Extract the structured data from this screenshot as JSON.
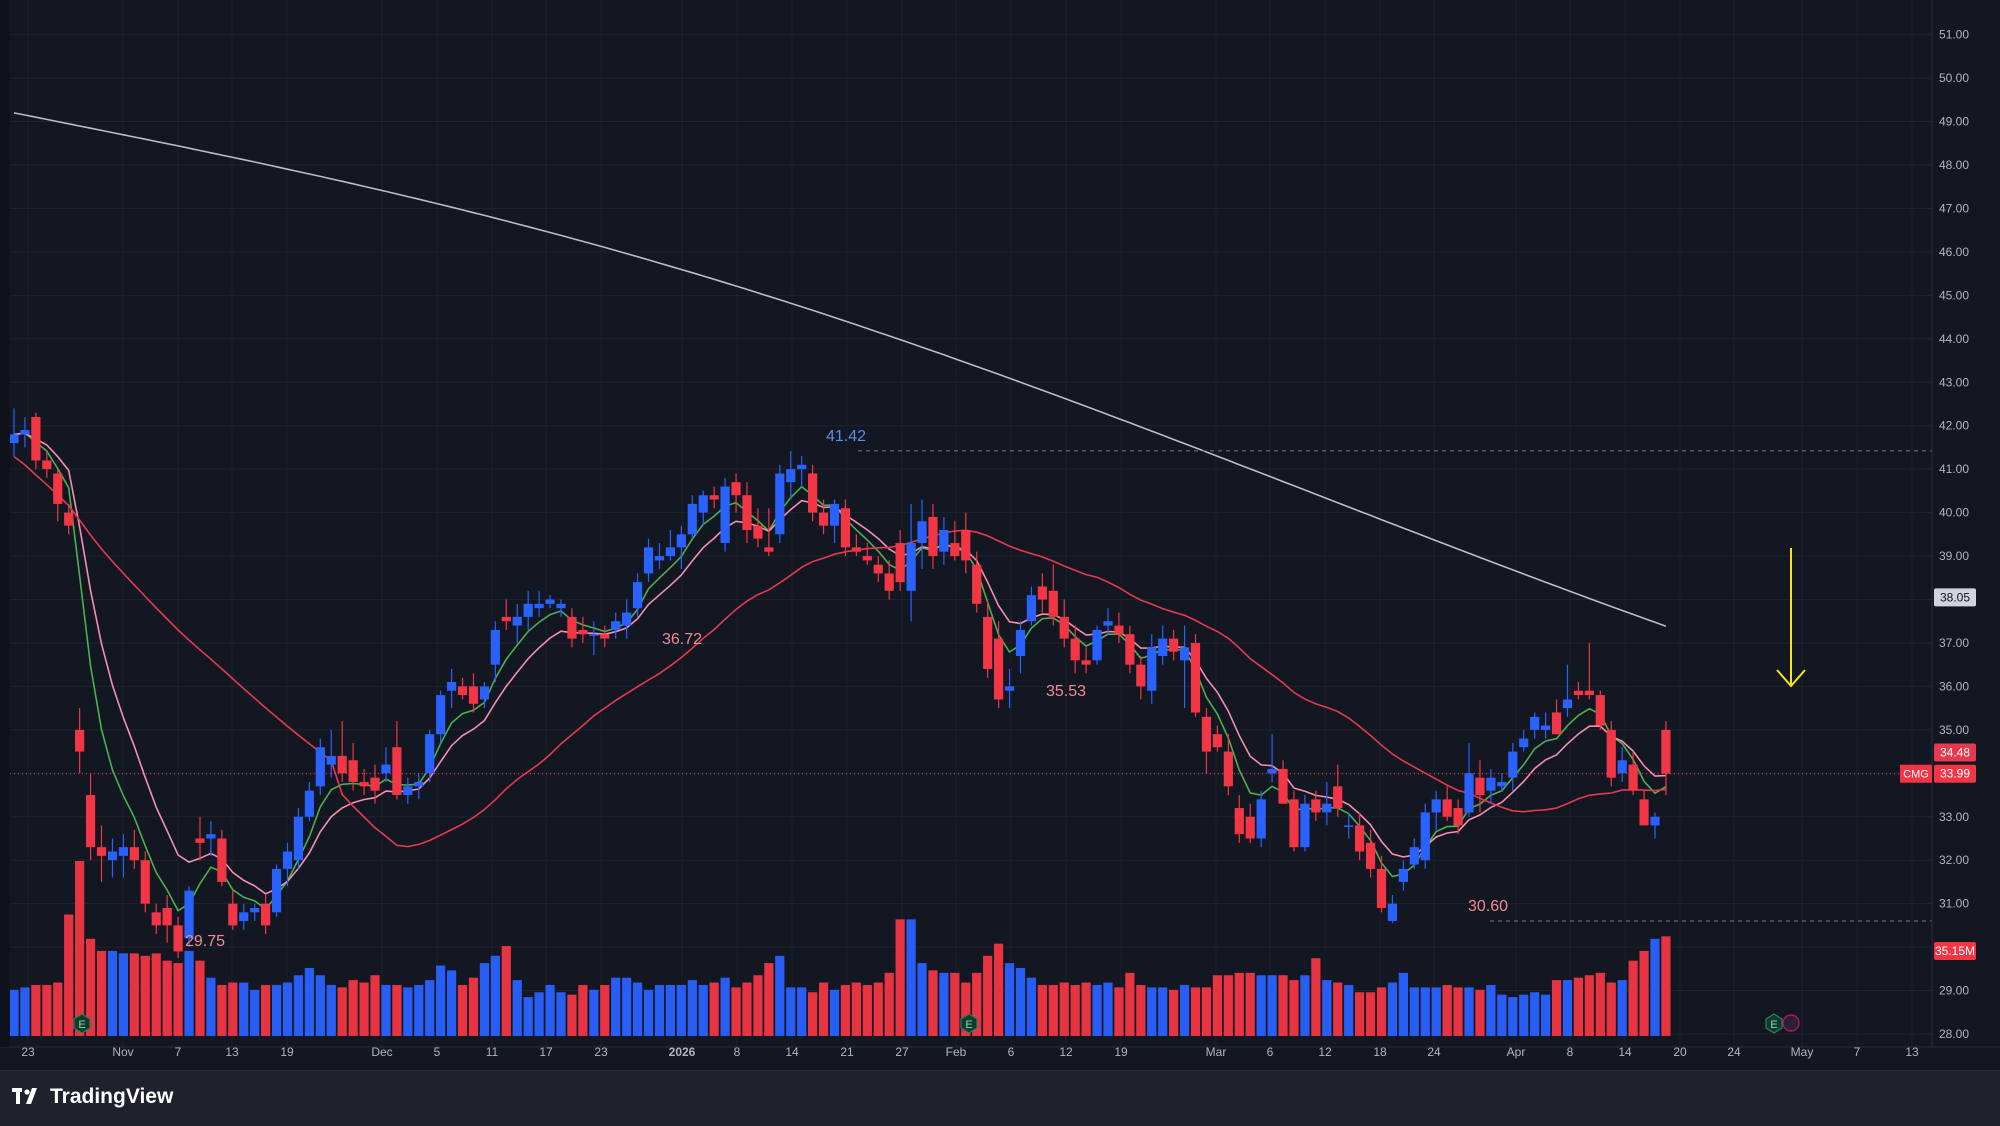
{
  "brand": {
    "name": "TradingView"
  },
  "colors": {
    "up": "#2962ff",
    "down": "#f23645",
    "ema_fast": "#4caf50",
    "ema_mid": "#f48fb1",
    "sma_mid": "#e53950",
    "sma_long": "#bdbdbd",
    "arrow": "#f5e51b"
  },
  "chart_data": {
    "type": "candlestick",
    "symbol": "CMG",
    "y_range": [
      27.5,
      51.2
    ],
    "y_ticks": [
      "28.00",
      "29.00",
      "30.00",
      "31.00",
      "32.00",
      "33.00",
      "34.00",
      "35.00",
      "36.00",
      "37.00",
      "38.00",
      "39.00",
      "40.00",
      "41.00",
      "42.00",
      "43.00",
      "44.00",
      "45.00",
      "46.00",
      "47.00",
      "48.00",
      "49.00",
      "50.00",
      "51.00"
    ],
    "x_ticks": [
      "23",
      "Nov",
      "7",
      "13",
      "19",
      "Dec",
      "5",
      "11",
      "17",
      "23",
      "2026",
      "8",
      "14",
      "21",
      "27",
      "Feb",
      "6",
      "12",
      "19",
      "Mar",
      "6",
      "12",
      "18",
      "24",
      "Apr",
      "8",
      "14",
      "20",
      "24",
      "May",
      "7",
      "13"
    ],
    "price_labels": {
      "ma_long": "38.05",
      "ma_mid": "34.48",
      "last": "33.99",
      "volume": "35.15M"
    },
    "annotations": [
      "41.42",
      "36.72",
      "29.75",
      "35.53",
      "30.60"
    ],
    "candles": [
      [
        41.6,
        42.4,
        41.3,
        41.8
      ],
      [
        41.8,
        42.2,
        41.5,
        41.9
      ],
      [
        42.2,
        42.3,
        41.0,
        41.2
      ],
      [
        41.2,
        41.4,
        40.8,
        41.0
      ],
      [
        40.9,
        41.0,
        39.8,
        40.2
      ],
      [
        40.0,
        40.2,
        39.5,
        39.7
      ],
      [
        35.0,
        35.5,
        34.0,
        34.5
      ],
      [
        33.5,
        34.0,
        32.0,
        32.3
      ],
      [
        32.3,
        32.8,
        31.5,
        32.1
      ],
      [
        32.0,
        32.5,
        31.6,
        32.2
      ],
      [
        32.1,
        32.6,
        31.6,
        32.3
      ],
      [
        32.3,
        32.7,
        31.8,
        32.0
      ],
      [
        32.0,
        32.2,
        30.8,
        31.0
      ],
      [
        30.8,
        31.0,
        30.3,
        30.5
      ],
      [
        30.9,
        31.2,
        30.1,
        30.5
      ],
      [
        30.5,
        30.7,
        29.75,
        29.9
      ],
      [
        30.2,
        31.4,
        30.0,
        31.3
      ],
      [
        32.5,
        33.0,
        32.0,
        32.4
      ],
      [
        32.5,
        32.9,
        32.1,
        32.6
      ],
      [
        32.5,
        32.7,
        31.4,
        31.5
      ],
      [
        31.0,
        31.3,
        30.4,
        30.5
      ],
      [
        30.6,
        31.0,
        30.4,
        30.8
      ],
      [
        30.8,
        31.0,
        30.6,
        30.9
      ],
      [
        31.0,
        31.2,
        30.3,
        30.5
      ],
      [
        30.8,
        31.9,
        30.7,
        31.8
      ],
      [
        31.8,
        32.4,
        31.4,
        32.2
      ],
      [
        32.0,
        33.2,
        31.8,
        33.0
      ],
      [
        33.0,
        33.8,
        32.9,
        33.6
      ],
      [
        33.7,
        34.8,
        33.5,
        34.6
      ],
      [
        34.2,
        35.0,
        33.9,
        34.4
      ],
      [
        34.4,
        35.2,
        33.8,
        34.0
      ],
      [
        34.3,
        34.7,
        33.6,
        33.8
      ],
      [
        33.8,
        34.1,
        33.5,
        33.7
      ],
      [
        33.9,
        34.2,
        33.3,
        33.6
      ],
      [
        34.0,
        34.6,
        33.8,
        34.2
      ],
      [
        34.6,
        35.2,
        33.4,
        33.5
      ],
      [
        33.5,
        33.9,
        33.3,
        33.7
      ],
      [
        33.7,
        34.0,
        33.4,
        33.8
      ],
      [
        34.0,
        35.0,
        33.8,
        34.9
      ],
      [
        34.9,
        35.9,
        34.7,
        35.8
      ],
      [
        35.9,
        36.4,
        35.5,
        36.1
      ],
      [
        36.0,
        36.2,
        35.7,
        35.8
      ],
      [
        36.0,
        36.3,
        35.4,
        35.6
      ],
      [
        35.7,
        36.1,
        35.5,
        36.0
      ],
      [
        36.5,
        37.5,
        36.1,
        37.3
      ],
      [
        37.6,
        38.0,
        37.3,
        37.5
      ],
      [
        37.4,
        37.9,
        37.0,
        37.6
      ],
      [
        37.6,
        38.2,
        37.3,
        37.9
      ],
      [
        37.8,
        38.2,
        37.6,
        37.9
      ],
      [
        37.9,
        38.1,
        37.8,
        38.0
      ],
      [
        37.8,
        38.0,
        37.6,
        37.9
      ],
      [
        37.6,
        37.8,
        36.9,
        37.1
      ],
      [
        37.3,
        37.6,
        37.0,
        37.2
      ],
      [
        37.2,
        37.5,
        36.72,
        37.2
      ],
      [
        37.2,
        37.4,
        36.9,
        37.1
      ],
      [
        37.3,
        37.7,
        37.1,
        37.5
      ],
      [
        37.4,
        38.0,
        37.1,
        37.7
      ],
      [
        37.8,
        38.6,
        37.6,
        38.4
      ],
      [
        38.6,
        39.4,
        38.4,
        39.2
      ],
      [
        38.9,
        39.3,
        38.7,
        39.0
      ],
      [
        39.0,
        39.6,
        38.9,
        39.2
      ],
      [
        39.2,
        39.7,
        38.7,
        39.5
      ],
      [
        39.5,
        40.4,
        39.4,
        40.2
      ],
      [
        40.0,
        40.5,
        39.7,
        40.4
      ],
      [
        40.4,
        40.6,
        40.1,
        40.3
      ],
      [
        39.3,
        40.8,
        39.1,
        40.6
      ],
      [
        40.7,
        40.9,
        40.0,
        40.4
      ],
      [
        40.4,
        40.7,
        39.3,
        39.6
      ],
      [
        39.7,
        40.1,
        39.2,
        39.4
      ],
      [
        39.2,
        40.1,
        39.0,
        39.1
      ],
      [
        39.5,
        41.1,
        39.3,
        40.9
      ],
      [
        40.7,
        41.42,
        40.3,
        41.0
      ],
      [
        41.0,
        41.3,
        40.6,
        41.1
      ],
      [
        40.9,
        41.1,
        39.8,
        40.0
      ],
      [
        40.0,
        40.3,
        39.5,
        39.7
      ],
      [
        39.7,
        40.3,
        39.3,
        40.2
      ],
      [
        40.1,
        40.3,
        39.0,
        39.2
      ],
      [
        39.2,
        39.5,
        39.0,
        39.1
      ],
      [
        39.0,
        39.3,
        38.8,
        38.9
      ],
      [
        38.8,
        39.0,
        38.4,
        38.6
      ],
      [
        38.6,
        38.9,
        38.0,
        38.2
      ],
      [
        39.3,
        39.6,
        38.2,
        38.4
      ],
      [
        38.2,
        40.2,
        37.5,
        39.3
      ],
      [
        39.3,
        40.3,
        38.7,
        39.8
      ],
      [
        39.9,
        40.2,
        38.7,
        39.0
      ],
      [
        39.1,
        39.9,
        38.8,
        39.6
      ],
      [
        39.3,
        39.8,
        38.9,
        39.0
      ],
      [
        39.6,
        40.0,
        38.6,
        38.9
      ],
      [
        38.8,
        39.1,
        37.7,
        37.9
      ],
      [
        37.6,
        38.0,
        36.2,
        36.4
      ],
      [
        37.1,
        37.5,
        35.5,
        35.7
      ],
      [
        35.9,
        36.4,
        35.5,
        36.0
      ],
      [
        36.7,
        37.5,
        36.3,
        37.3
      ],
      [
        37.5,
        38.3,
        37.4,
        38.1
      ],
      [
        38.3,
        38.6,
        37.7,
        38.0
      ],
      [
        38.2,
        38.8,
        37.4,
        37.6
      ],
      [
        37.6,
        38.0,
        36.9,
        37.1
      ],
      [
        37.1,
        37.4,
        36.3,
        36.6
      ],
      [
        36.6,
        36.9,
        36.3,
        36.5
      ],
      [
        36.6,
        37.4,
        36.5,
        37.3
      ],
      [
        37.4,
        37.8,
        37.2,
        37.5
      ],
      [
        37.4,
        37.7,
        37.0,
        37.2
      ],
      [
        37.2,
        37.4,
        36.3,
        36.5
      ],
      [
        36.5,
        36.7,
        35.7,
        36.0
      ],
      [
        35.9,
        37.2,
        35.6,
        36.9
      ],
      [
        36.7,
        37.4,
        36.5,
        37.1
      ],
      [
        37.1,
        37.3,
        36.6,
        36.8
      ],
      [
        36.6,
        37.4,
        35.5,
        36.9
      ],
      [
        37.0,
        37.2,
        35.3,
        35.4
      ],
      [
        35.3,
        35.5,
        34.0,
        34.5
      ],
      [
        34.9,
        35.1,
        34.5,
        34.6
      ],
      [
        34.5,
        34.9,
        33.5,
        33.7
      ],
      [
        33.2,
        33.5,
        32.4,
        32.6
      ],
      [
        33.0,
        33.3,
        32.4,
        32.5
      ],
      [
        32.5,
        33.6,
        32.3,
        33.4
      ],
      [
        34.0,
        34.9,
        33.8,
        34.1
      ],
      [
        34.1,
        34.3,
        33.3,
        33.3
      ],
      [
        33.4,
        33.6,
        32.2,
        32.3
      ],
      [
        32.3,
        33.5,
        32.2,
        33.3
      ],
      [
        33.4,
        33.6,
        32.9,
        33.1
      ],
      [
        33.1,
        33.8,
        32.8,
        33.3
      ],
      [
        33.7,
        34.2,
        33.0,
        33.2
      ],
      [
        32.8,
        33.1,
        32.5,
        32.8
      ],
      [
        32.8,
        33.1,
        32.0,
        32.2
      ],
      [
        32.4,
        32.7,
        31.6,
        31.8
      ],
      [
        31.8,
        32.1,
        30.8,
        30.9
      ],
      [
        30.6,
        31.2,
        30.55,
        31.0
      ],
      [
        31.5,
        32.0,
        31.3,
        31.8
      ],
      [
        31.9,
        32.5,
        31.8,
        32.3
      ],
      [
        32.0,
        33.3,
        31.8,
        33.1
      ],
      [
        33.1,
        33.6,
        32.7,
        33.4
      ],
      [
        33.4,
        33.7,
        32.9,
        33.0
      ],
      [
        33.2,
        33.4,
        32.6,
        32.8
      ],
      [
        33.1,
        34.7,
        33.0,
        34.0
      ],
      [
        33.9,
        34.3,
        33.1,
        33.5
      ],
      [
        33.6,
        34.1,
        33.3,
        33.9
      ],
      [
        33.7,
        34.0,
        33.6,
        33.8
      ],
      [
        33.9,
        34.7,
        33.6,
        34.5
      ],
      [
        34.6,
        35.0,
        34.5,
        34.8
      ],
      [
        35.0,
        35.4,
        34.8,
        35.3
      ],
      [
        35.0,
        35.4,
        34.8,
        35.1
      ],
      [
        35.4,
        35.7,
        34.9,
        34.9
      ],
      [
        35.5,
        36.5,
        35.3,
        35.7
      ],
      [
        35.9,
        36.1,
        35.7,
        35.8
      ],
      [
        35.9,
        37.0,
        35.7,
        35.8
      ],
      [
        35.8,
        35.9,
        35.0,
        35.1
      ],
      [
        35.0,
        35.2,
        33.7,
        33.9
      ],
      [
        34.0,
        34.6,
        33.8,
        34.3
      ],
      [
        34.2,
        34.5,
        33.5,
        33.6
      ],
      [
        33.4,
        33.6,
        32.8,
        32.8
      ],
      [
        32.8,
        33.1,
        32.5,
        33.0
      ],
      [
        35.0,
        35.2,
        33.5,
        33.99
      ]
    ],
    "volumes": [
      19,
      20,
      21,
      21,
      22,
      50,
      72,
      40,
      35,
      35,
      34,
      34,
      33,
      34,
      31,
      30,
      35,
      31,
      24,
      21,
      22,
      22,
      19,
      21,
      21,
      22,
      25,
      28,
      25,
      21,
      20,
      23,
      22,
      25,
      21,
      21,
      20,
      21,
      23,
      29,
      27,
      21,
      24,
      30,
      33,
      37,
      23,
      16,
      18,
      21,
      18,
      17,
      21,
      19,
      21,
      24,
      24,
      22,
      19,
      21,
      21,
      21,
      23,
      21,
      22,
      24,
      20,
      22,
      25,
      30,
      33,
      20,
      20,
      18,
      22,
      19,
      21,
      22,
      21,
      22,
      26,
      48,
      48,
      30,
      27,
      26,
      26,
      22,
      26,
      33,
      38,
      30,
      28,
      24,
      21,
      21,
      22,
      21,
      22,
      21,
      22,
      20,
      26,
      21,
      20,
      20,
      19,
      21,
      20,
      20,
      25,
      25,
      26,
      26,
      25,
      25,
      25,
      23,
      25,
      32,
      23,
      22,
      21,
      18,
      18,
      20,
      22,
      26,
      20,
      20,
      20,
      21,
      20,
      20,
      19,
      21,
      17,
      16,
      17,
      18,
      17,
      23,
      23,
      24,
      25,
      26,
      22,
      23,
      31,
      35,
      40,
      41
    ]
  }
}
